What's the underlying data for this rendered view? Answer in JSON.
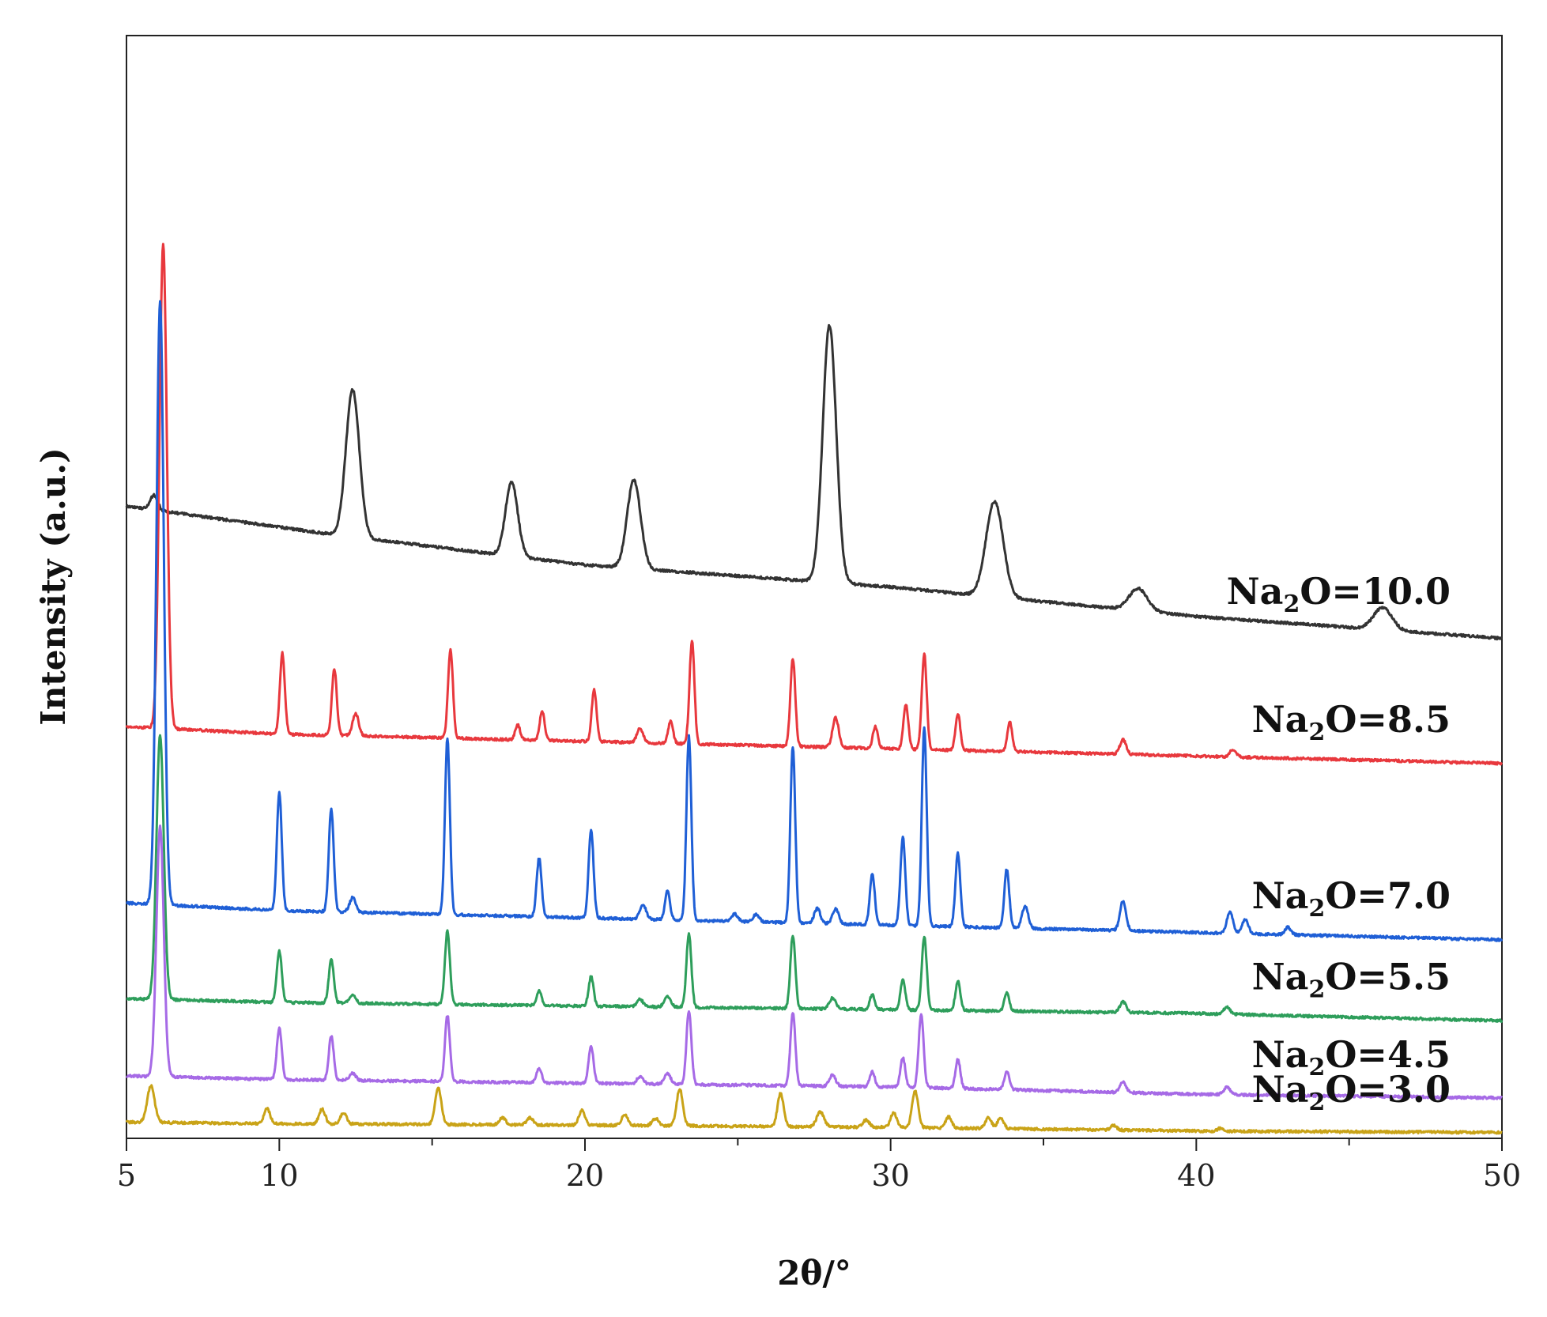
{
  "chart_data": {
    "type": "line",
    "title": "",
    "xlabel": "2θ/°",
    "ylabel": "Intensity (a.u.)",
    "xlim": [
      5,
      50
    ],
    "xticks": [
      5,
      10,
      20,
      30,
      40,
      50
    ],
    "yticks_shown": false,
    "grid": false,
    "legend": "inline-right",
    "series": [
      {
        "name_parts": [
          "Na",
          "2",
          "O=10.0"
        ],
        "color": "#333333",
        "baseline": [
          [
            5,
            86
          ],
          [
            12,
            82
          ],
          [
            20,
            78
          ],
          [
            30,
            75
          ],
          [
            40,
            71
          ],
          [
            50,
            68
          ]
        ],
        "peaks": [
          [
            5.9,
            2,
            0.12
          ],
          [
            12.4,
            20,
            0.22
          ],
          [
            17.6,
            10,
            0.2
          ],
          [
            21.6,
            12,
            0.22
          ],
          [
            28.0,
            35,
            0.22
          ],
          [
            33.4,
            13,
            0.28
          ],
          [
            38.1,
            3,
            0.3
          ],
          [
            46.1,
            3,
            0.3
          ]
        ]
      },
      {
        "name_parts": [
          "Na",
          "2",
          "O=8.5"
        ],
        "color": "#e8383d",
        "baseline": [
          [
            5,
            56
          ],
          [
            10,
            55
          ],
          [
            20,
            54
          ],
          [
            30,
            53
          ],
          [
            40,
            52
          ],
          [
            50,
            51
          ]
        ],
        "peaks": [
          [
            6.2,
            66,
            0.12
          ],
          [
            10.1,
            11,
            0.08
          ],
          [
            11.8,
            9,
            0.08
          ],
          [
            12.5,
            3,
            0.1
          ],
          [
            15.6,
            12,
            0.08
          ],
          [
            17.8,
            2,
            0.08
          ],
          [
            18.6,
            4,
            0.08
          ],
          [
            20.3,
            7,
            0.08
          ],
          [
            21.8,
            2,
            0.1
          ],
          [
            22.8,
            3,
            0.08
          ],
          [
            23.5,
            14,
            0.08
          ],
          [
            26.8,
            12,
            0.08
          ],
          [
            28.2,
            4,
            0.1
          ],
          [
            29.5,
            3,
            0.08
          ],
          [
            30.5,
            6,
            0.08
          ],
          [
            31.1,
            13,
            0.08
          ],
          [
            32.2,
            5,
            0.08
          ],
          [
            33.9,
            4,
            0.08
          ],
          [
            37.6,
            2,
            0.1
          ],
          [
            41.2,
            1,
            0.1
          ]
        ]
      },
      {
        "name_parts": [
          "Na",
          "2",
          "O=7.0"
        ],
        "color": "#1f5fd6",
        "baseline": [
          [
            5,
            32
          ],
          [
            10,
            31
          ],
          [
            20,
            30
          ],
          [
            30,
            29
          ],
          [
            40,
            28
          ],
          [
            50,
            27
          ]
        ],
        "peaks": [
          [
            6.1,
            82,
            0.12
          ],
          [
            10.0,
            16,
            0.08
          ],
          [
            11.7,
            14,
            0.08
          ],
          [
            12.4,
            2,
            0.1
          ],
          [
            15.5,
            24,
            0.08
          ],
          [
            18.5,
            8,
            0.08
          ],
          [
            20.2,
            12,
            0.08
          ],
          [
            21.9,
            2,
            0.1
          ],
          [
            22.7,
            4,
            0.08
          ],
          [
            23.4,
            25,
            0.08
          ],
          [
            24.9,
            1,
            0.1
          ],
          [
            25.6,
            1,
            0.1
          ],
          [
            26.8,
            24,
            0.08
          ],
          [
            27.6,
            2,
            0.1
          ],
          [
            28.2,
            2,
            0.1
          ],
          [
            29.4,
            7,
            0.08
          ],
          [
            30.4,
            12,
            0.08
          ],
          [
            31.1,
            27,
            0.08
          ],
          [
            32.2,
            10,
            0.08
          ],
          [
            33.8,
            8,
            0.08
          ],
          [
            34.4,
            3,
            0.1
          ],
          [
            37.6,
            4,
            0.1
          ],
          [
            41.1,
            3,
            0.1
          ],
          [
            41.6,
            2,
            0.1
          ],
          [
            43.0,
            1,
            0.1
          ]
        ]
      },
      {
        "name_parts": [
          "Na",
          "2",
          "O=5.5"
        ],
        "color": "#2e9e5b",
        "baseline": [
          [
            5,
            19
          ],
          [
            10,
            18.5
          ],
          [
            20,
            18
          ],
          [
            30,
            17.5
          ],
          [
            40,
            17
          ],
          [
            50,
            16
          ]
        ],
        "peaks": [
          [
            6.1,
            36,
            0.12
          ],
          [
            10.0,
            7,
            0.08
          ],
          [
            11.7,
            6,
            0.08
          ],
          [
            12.4,
            1,
            0.1
          ],
          [
            15.5,
            10,
            0.08
          ],
          [
            18.5,
            2,
            0.08
          ],
          [
            20.2,
            4,
            0.08
          ],
          [
            21.8,
            1,
            0.1
          ],
          [
            22.7,
            1.5,
            0.1
          ],
          [
            23.4,
            10,
            0.08
          ],
          [
            26.8,
            10,
            0.08
          ],
          [
            28.1,
            1.5,
            0.1
          ],
          [
            29.4,
            2,
            0.08
          ],
          [
            30.4,
            4,
            0.08
          ],
          [
            31.1,
            10,
            0.08
          ],
          [
            32.2,
            4,
            0.08
          ],
          [
            33.8,
            2.5,
            0.08
          ],
          [
            37.6,
            1.5,
            0.1
          ],
          [
            41.0,
            1,
            0.1
          ]
        ]
      },
      {
        "name_parts": [
          "Na",
          "2",
          "O=4.5"
        ],
        "color": "#a66ae6",
        "baseline": [
          [
            5,
            8.5
          ],
          [
            10,
            8
          ],
          [
            20,
            7.5
          ],
          [
            30,
            7
          ],
          [
            40,
            6
          ],
          [
            50,
            5.5
          ]
        ],
        "peaks": [
          [
            6.1,
            34,
            0.12
          ],
          [
            10.0,
            7,
            0.08
          ],
          [
            11.7,
            6,
            0.08
          ],
          [
            12.4,
            1,
            0.1
          ],
          [
            15.5,
            9,
            0.08
          ],
          [
            18.5,
            2,
            0.08
          ],
          [
            20.2,
            5,
            0.08
          ],
          [
            21.8,
            1,
            0.1
          ],
          [
            22.7,
            1.5,
            0.1
          ],
          [
            23.4,
            10,
            0.08
          ],
          [
            26.8,
            10,
            0.08
          ],
          [
            28.1,
            1.5,
            0.1
          ],
          [
            29.4,
            2,
            0.08
          ],
          [
            30.4,
            4,
            0.08
          ],
          [
            31.0,
            10,
            0.08
          ],
          [
            32.2,
            4,
            0.08
          ],
          [
            33.8,
            2.5,
            0.08
          ],
          [
            37.6,
            1.5,
            0.1
          ],
          [
            41.0,
            1,
            0.1
          ]
        ]
      },
      {
        "name_parts": [
          "Na",
          "2",
          "O=3.0"
        ],
        "color": "#c9a317",
        "baseline": [
          [
            5,
            2.2
          ],
          [
            10,
            2.0
          ],
          [
            20,
            1.8
          ],
          [
            30,
            1.5
          ],
          [
            40,
            1.0
          ],
          [
            50,
            0.8
          ]
        ],
        "peaks": [
          [
            5.8,
            5,
            0.12
          ],
          [
            9.6,
            2,
            0.1
          ],
          [
            11.4,
            2,
            0.1
          ],
          [
            12.1,
            1.5,
            0.1
          ],
          [
            15.2,
            5,
            0.1
          ],
          [
            17.3,
            1,
            0.1
          ],
          [
            18.2,
            1,
            0.1
          ],
          [
            19.9,
            2,
            0.1
          ],
          [
            21.3,
            1.5,
            0.1
          ],
          [
            22.3,
            1,
            0.1
          ],
          [
            23.1,
            5,
            0.1
          ],
          [
            26.4,
            4.5,
            0.1
          ],
          [
            27.7,
            2,
            0.12
          ],
          [
            29.2,
            1,
            0.1
          ],
          [
            30.1,
            2,
            0.1
          ],
          [
            30.8,
            5,
            0.1
          ],
          [
            31.9,
            1.5,
            0.1
          ],
          [
            33.2,
            1.5,
            0.1
          ],
          [
            33.6,
            1.5,
            0.1
          ],
          [
            37.3,
            0.6,
            0.1
          ],
          [
            40.8,
            0.4,
            0.1
          ]
        ]
      }
    ]
  }
}
